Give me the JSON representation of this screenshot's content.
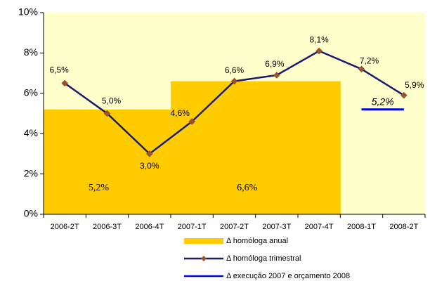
{
  "chart_data": {
    "type": "bar-line",
    "categories": [
      "2006-2T",
      "2006-3T",
      "2006-4T",
      "2007-1T",
      "2007-2T",
      "2007-3T",
      "2007-4T",
      "2008-1T",
      "2008-2T"
    ],
    "ylim": [
      0,
      10
    ],
    "yticks": [
      {
        "value": 0,
        "label": "0%"
      },
      {
        "value": 2,
        "label": "2%"
      },
      {
        "value": 4,
        "label": "4%"
      },
      {
        "value": 6,
        "label": "6%"
      },
      {
        "value": 8,
        "label": "8%"
      },
      {
        "value": 10,
        "label": "10%"
      }
    ],
    "series": [
      {
        "name": "Δ homóloga anual",
        "type": "bar",
        "color": "#ffcc00",
        "values": [
          5.2,
          5.2,
          5.2,
          6.6,
          6.6,
          6.6,
          6.6,
          null,
          null
        ],
        "value_labels": [
          "5,2%",
          null,
          null,
          "6,6%",
          null,
          null,
          null,
          null,
          null
        ]
      },
      {
        "name": "Δ homóloga trimestral",
        "type": "line",
        "color": "#1a1a6e",
        "marker_color": "#a0522d",
        "values": [
          6.5,
          5.0,
          3.0,
          4.6,
          6.6,
          6.9,
          8.1,
          7.2,
          5.9
        ],
        "value_labels": [
          "6,5%",
          "5,0%",
          "3,0%",
          "4,6%",
          "6,6%",
          "6,9%",
          "8,1%",
          "7,2%",
          "5,9%"
        ]
      },
      {
        "name": "Δ execução 2007 e orçamento 2008",
        "type": "line",
        "color": "#0000ee",
        "values": [
          null,
          null,
          null,
          null,
          null,
          null,
          null,
          5.2,
          5.2
        ],
        "value_labels": [
          null,
          null,
          null,
          null,
          null,
          null,
          null,
          "5,2%",
          null
        ]
      }
    ]
  }
}
